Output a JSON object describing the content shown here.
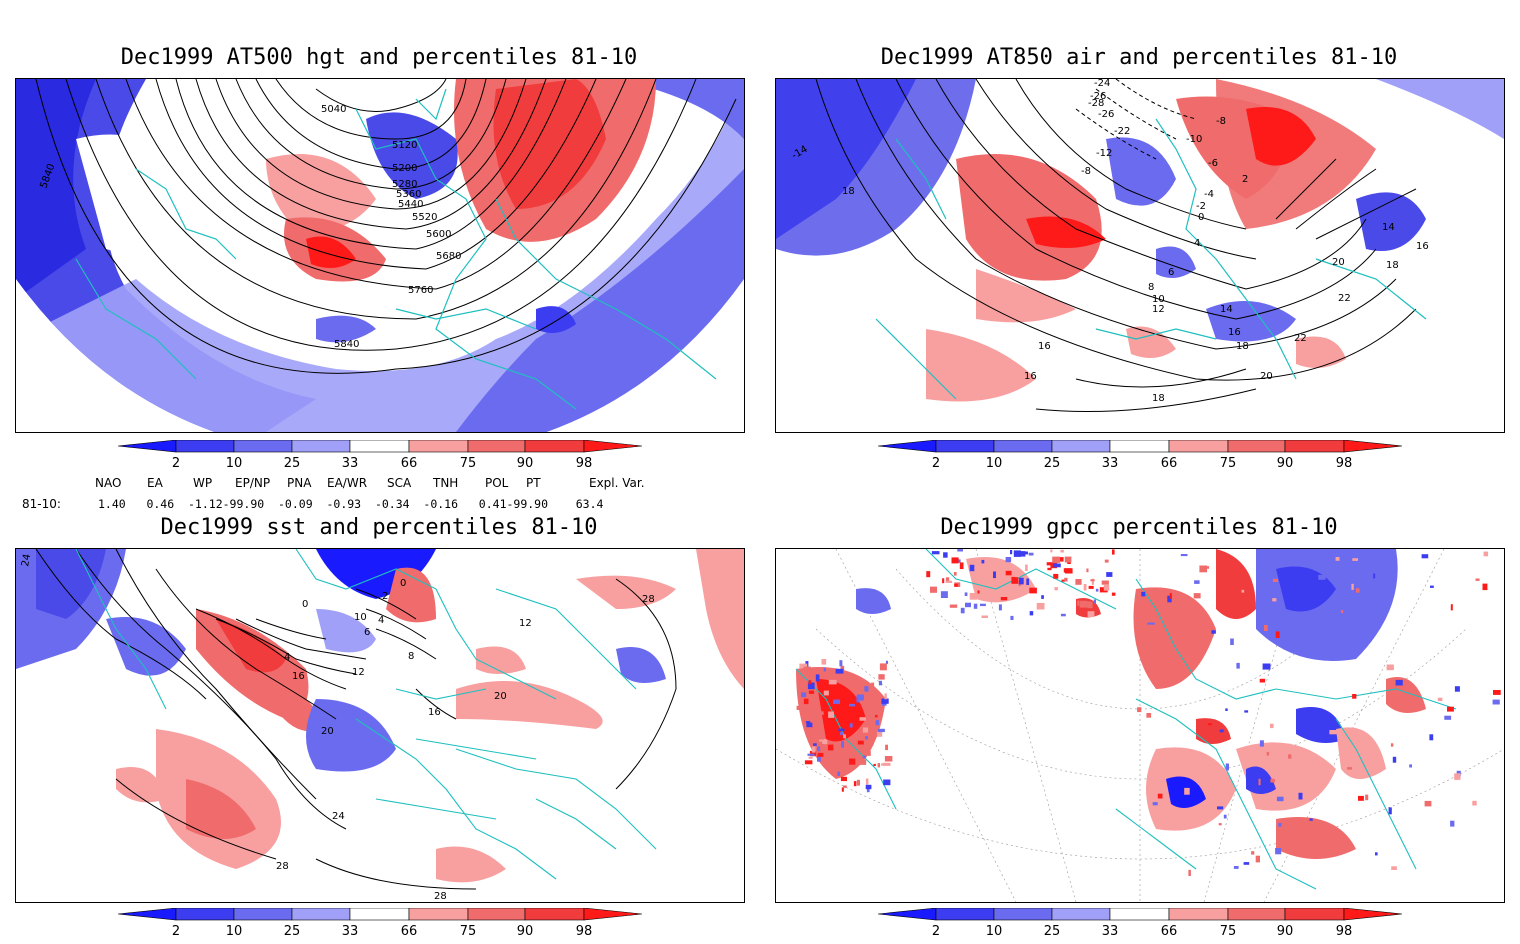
{
  "panels": [
    {
      "title": "Dec1999 AT500 hgt and percentiles 81-10",
      "contour_labels": [
        "5040",
        "5120",
        "5200",
        "5280",
        "5360",
        "5440",
        "5520",
        "5600",
        "5680",
        "5760",
        "5840",
        "5840"
      ]
    },
    {
      "title": "Dec1999 AT850 air and percentiles 81-10",
      "contour_labels": [
        "-24",
        "-26",
        "-28",
        "-26",
        "-22",
        "-12",
        "-8",
        "-10",
        "-8",
        "-6",
        "-4",
        "-2",
        "0",
        "2",
        "4",
        "6",
        "8",
        "10",
        "12",
        "14",
        "16",
        "16",
        "16",
        "18",
        "18",
        "20",
        "20",
        "22",
        "22",
        "14",
        "16",
        "18",
        "18",
        "-14"
      ]
    },
    {
      "title": "Dec1999 sst and percentiles 81-10",
      "contour_labels": [
        "0",
        "0",
        "2",
        "4",
        "6",
        "8",
        "10",
        "4",
        "12",
        "16",
        "16",
        "20",
        "20",
        "24",
        "28",
        "28",
        "28",
        "12",
        "24"
      ]
    },
    {
      "title": "Dec1999 gpcc percentiles 81-10",
      "contour_labels": []
    }
  ],
  "colorbar": {
    "labels": [
      "2",
      "10",
      "25",
      "33",
      "66",
      "75",
      "90",
      "98"
    ],
    "colors": [
      "#1a1aff",
      "#3c3cf0",
      "#6b6bf0",
      "#a0a0f8",
      "#ffffff",
      "#f8a0a0",
      "#f06b6b",
      "#f03c3c",
      "#ff1a1a"
    ]
  },
  "indices": {
    "headers": [
      "NAO",
      "EA",
      "WP",
      "EP/NP",
      "PNA",
      "EA/WR",
      "SCA",
      "TNH",
      "POL",
      "PT",
      "Expl. Var."
    ],
    "row_label": "81-10:",
    "values_text": "1.40   0.46  -1.12-99.90  -0.09  -0.93  -0.34  -0.16   0.41-99.90    63.4"
  },
  "colors": {
    "coast": "#1fbfbf",
    "contour": "#000000"
  }
}
